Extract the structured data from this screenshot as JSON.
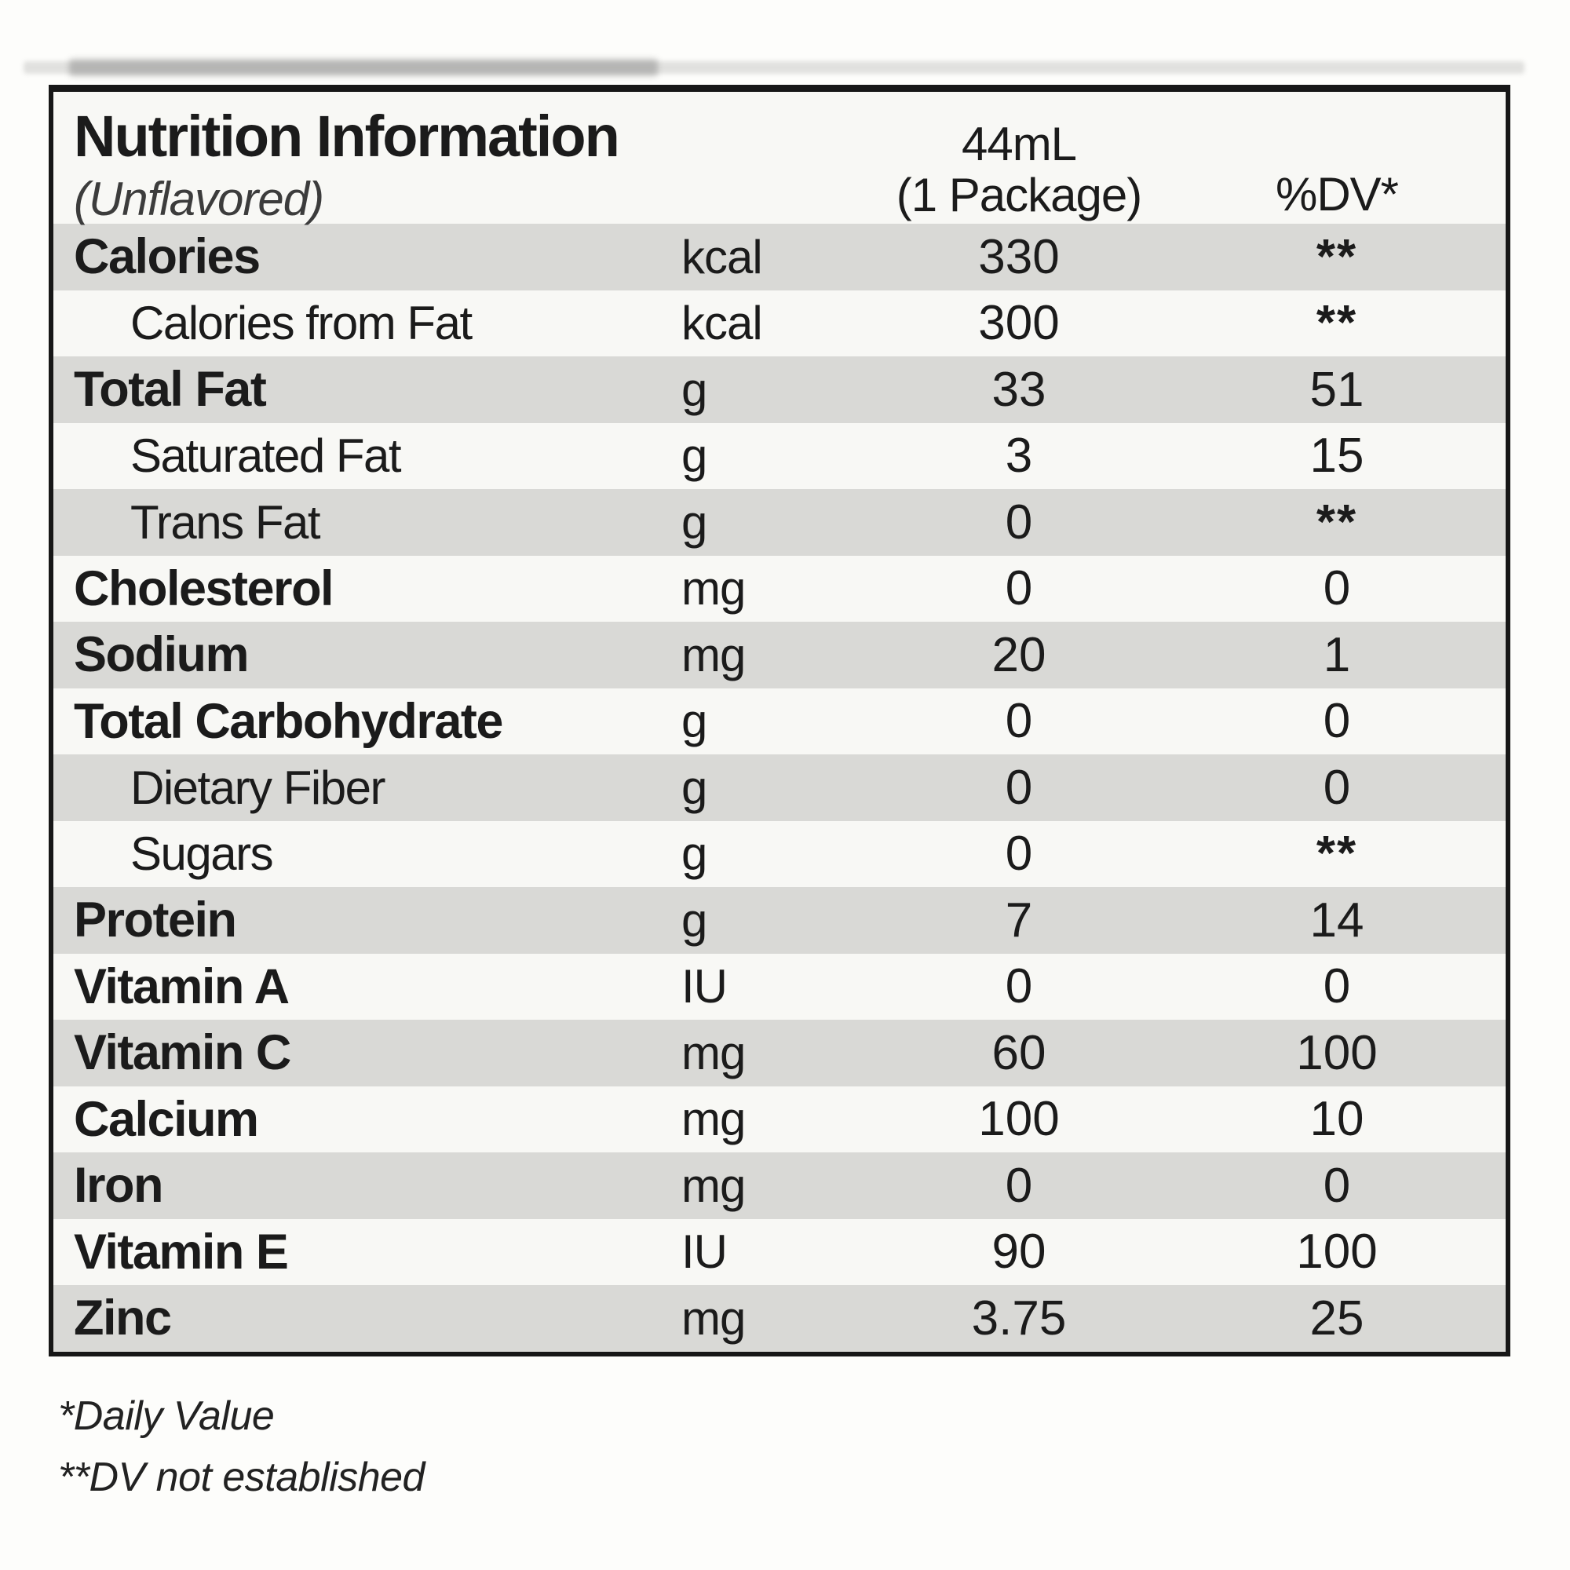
{
  "header": {
    "title": "Nutrition Information",
    "subtitle": "(Unflavored)",
    "serving_line1": "44mL",
    "serving_line2": "(1 Package)",
    "dv_header": "%DV*"
  },
  "rows": [
    {
      "name": "Calories",
      "unit": "kcal",
      "value": "330",
      "dv": "**",
      "indent": false,
      "shaded": true
    },
    {
      "name": "Calories from Fat",
      "unit": "kcal",
      "value": "300",
      "dv": "**",
      "indent": true,
      "shaded": false
    },
    {
      "name": "Total Fat",
      "unit": "g",
      "value": "33",
      "dv": "51",
      "indent": false,
      "shaded": true
    },
    {
      "name": "Saturated Fat",
      "unit": "g",
      "value": "3",
      "dv": "15",
      "indent": true,
      "shaded": false
    },
    {
      "name": "Trans Fat",
      "unit": "g",
      "value": "0",
      "dv": "**",
      "indent": true,
      "shaded": true
    },
    {
      "name": "Cholesterol",
      "unit": "mg",
      "value": "0",
      "dv": "0",
      "indent": false,
      "shaded": false
    },
    {
      "name": "Sodium",
      "unit": "mg",
      "value": "20",
      "dv": "1",
      "indent": false,
      "shaded": true
    },
    {
      "name": "Total Carbohydrate",
      "unit": "g",
      "value": "0",
      "dv": "0",
      "indent": false,
      "shaded": false
    },
    {
      "name": "Dietary Fiber",
      "unit": "g",
      "value": "0",
      "dv": "0",
      "indent": true,
      "shaded": true
    },
    {
      "name": "Sugars",
      "unit": "g",
      "value": "0",
      "dv": "**",
      "indent": true,
      "shaded": false
    },
    {
      "name": "Protein",
      "unit": "g",
      "value": "7",
      "dv": "14",
      "indent": false,
      "shaded": true
    },
    {
      "name": "Vitamin A",
      "unit": "IU",
      "value": "0",
      "dv": "0",
      "indent": false,
      "shaded": false
    },
    {
      "name": "Vitamin C",
      "unit": "mg",
      "value": "60",
      "dv": "100",
      "indent": false,
      "shaded": true
    },
    {
      "name": "Calcium",
      "unit": "mg",
      "value": "100",
      "dv": "10",
      "indent": false,
      "shaded": false
    },
    {
      "name": "Iron",
      "unit": "mg",
      "value": "0",
      "dv": "0",
      "indent": false,
      "shaded": true
    },
    {
      "name": "Vitamin E",
      "unit": "IU",
      "value": "90",
      "dv": "100",
      "indent": false,
      "shaded": false
    },
    {
      "name": "Zinc",
      "unit": "mg",
      "value": "3.75",
      "dv": "25",
      "indent": false,
      "shaded": true
    }
  ],
  "footnotes": [
    "*Daily Value",
    "**DV not established"
  ],
  "colors": {
    "row_band": "#d9d9d6",
    "border": "#171717",
    "text": "#1b1b1b",
    "table_background": "#f8f8f5"
  }
}
